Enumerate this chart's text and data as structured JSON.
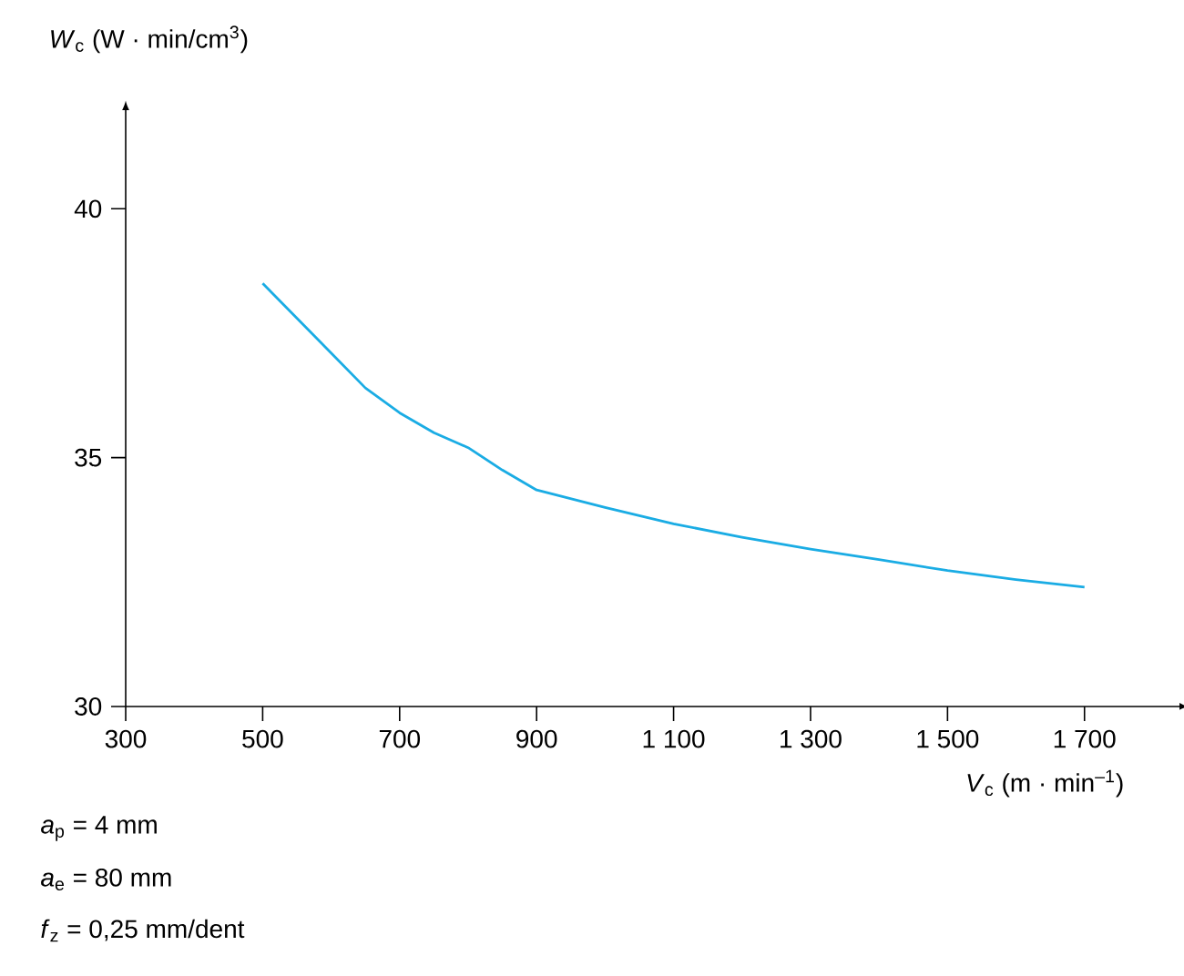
{
  "chart_data": {
    "type": "line",
    "ylabel": "*W*$_{c}$ (W · min/cm$^{3}$)",
    "xlabel": "*V*$_{c}$ (m · min$^{–1}$)",
    "annotations": [
      "*a*$_{p}$ = 4 mm",
      "*a*$_{e}$ = 80 mm",
      "*f*$_{z}$  = 0,25 mm/dent"
    ],
    "x": [
      500,
      550,
      600,
      650,
      700,
      750,
      800,
      850,
      900,
      1000,
      1100,
      1200,
      1300,
      1400,
      1500,
      1600,
      1700
    ],
    "series": [
      {
        "color": "#1aace4",
        "values": [
          38.5,
          37.8,
          37.1,
          36.4,
          35.9,
          35.5,
          35.2,
          34.75,
          34.35,
          34.0,
          33.67,
          33.4,
          33.16,
          32.95,
          32.73,
          32.55,
          32.4
        ]
      }
    ],
    "xlim": [
      300,
      1840
    ],
    "ylim": [
      30,
      42
    ],
    "xticks": [
      300,
      500,
      700,
      900,
      {
        "value": 1100,
        "label": "1 100"
      },
      {
        "value": 1300,
        "label": "1 300"
      },
      {
        "value": 1500,
        "label": "1 500"
      },
      {
        "value": 1700,
        "label": "1 700"
      }
    ],
    "yticks": [
      30,
      35,
      40
    ]
  }
}
